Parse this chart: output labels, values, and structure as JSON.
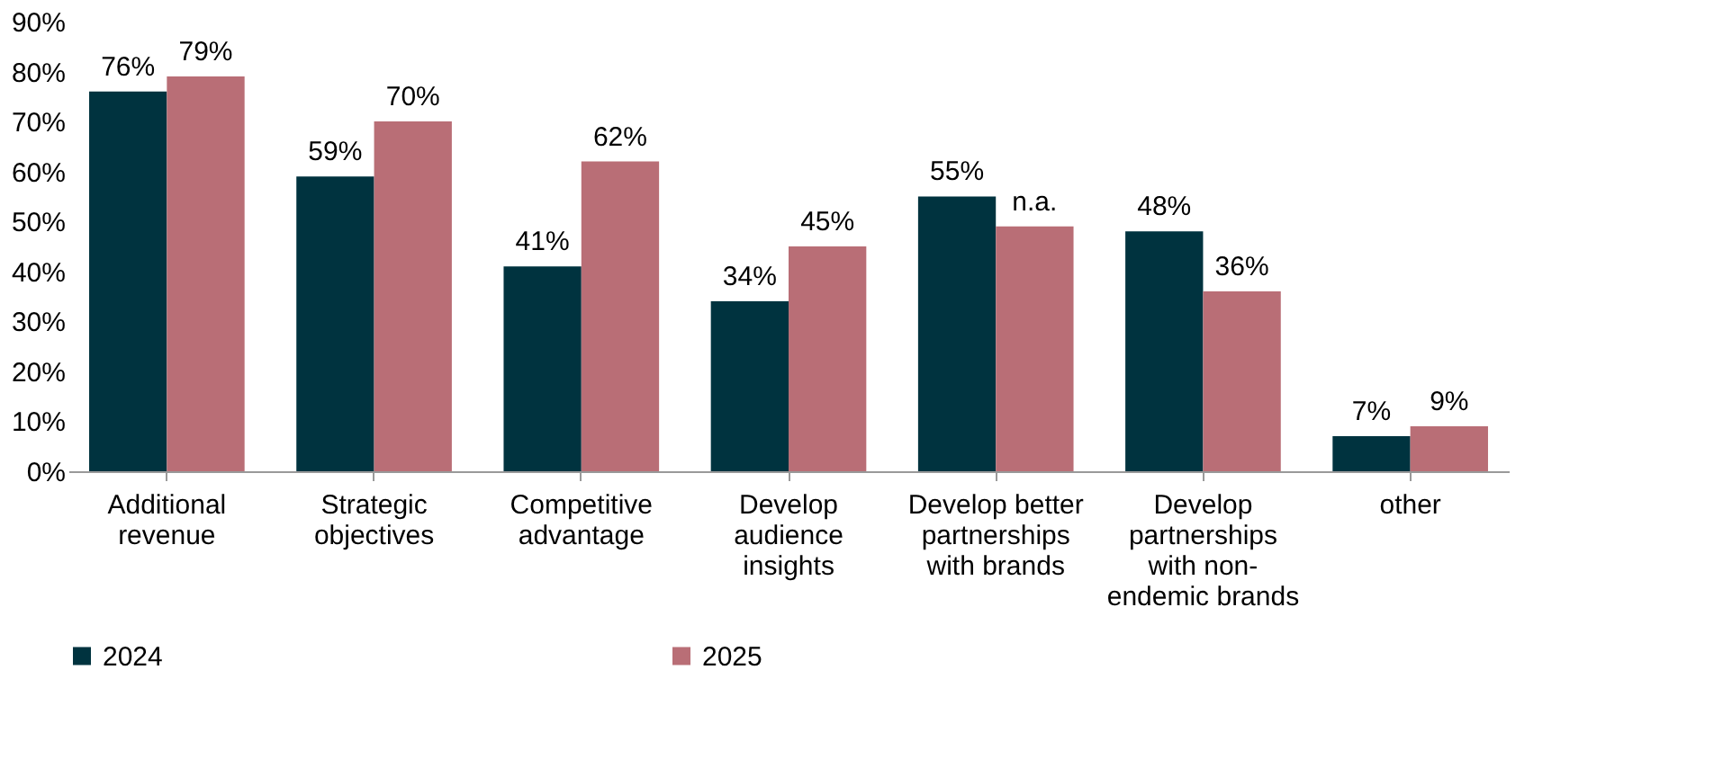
{
  "chart_data": {
    "type": "bar",
    "categories": [
      "Additional revenue",
      "Strategic objectives",
      "Competitive advantage",
      "Develop audience insights",
      "Develop better partnerships with brands",
      "Develop partnerships with non-endemic brands",
      "other"
    ],
    "series": [
      {
        "name": "2024",
        "color": "#00333f",
        "values": [
          76,
          59,
          41,
          34,
          55,
          48,
          7
        ],
        "value_labels": [
          "76%",
          "59%",
          "41%",
          "34%",
          "55%",
          "48%",
          "7%"
        ]
      },
      {
        "name": "2025",
        "color": "#b96e76",
        "values": [
          79,
          70,
          62,
          45,
          49,
          36,
          9
        ],
        "value_labels": [
          "79%",
          "70%",
          "62%",
          "45%",
          "n.a.",
          "36%",
          "9%"
        ]
      }
    ],
    "ylim": [
      0,
      90
    ],
    "yticks": [
      {
        "value": 0,
        "label": "0%"
      },
      {
        "value": 10,
        "label": "10%"
      },
      {
        "value": 20,
        "label": "20%"
      },
      {
        "value": 30,
        "label": "30%"
      },
      {
        "value": 40,
        "label": "40%"
      },
      {
        "value": 50,
        "label": "50%"
      },
      {
        "value": 60,
        "label": "60%"
      },
      {
        "value": 70,
        "label": "70%"
      },
      {
        "value": 80,
        "label": "80%"
      },
      {
        "value": 90,
        "label": "90%"
      }
    ],
    "grid": false,
    "legend": "bottom"
  }
}
